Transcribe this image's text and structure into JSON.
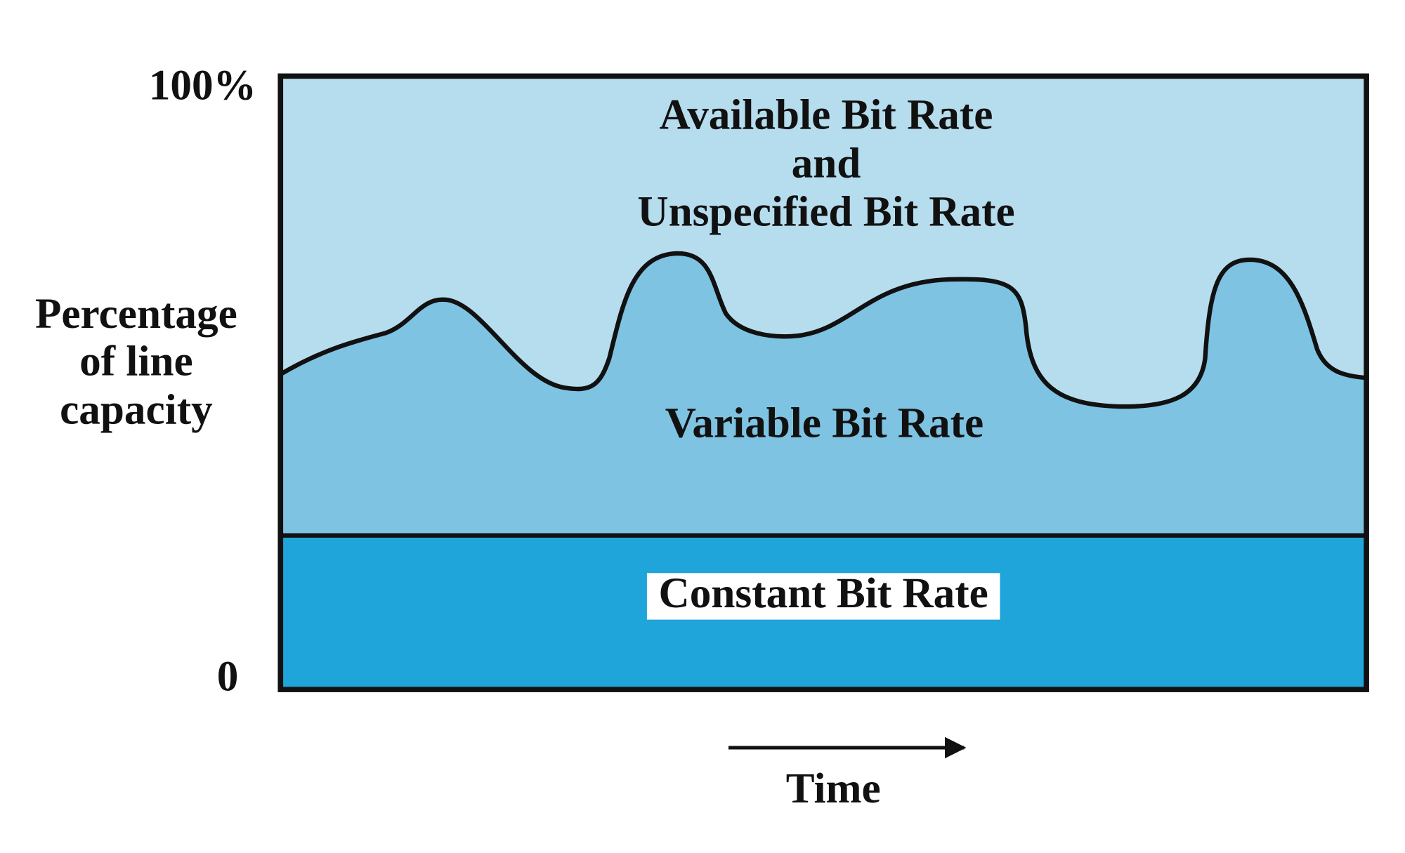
{
  "axis": {
    "y_top_label": "100%",
    "y_bottom_label": "0",
    "y_title_lines": [
      "Percentage",
      "of line",
      "capacity"
    ],
    "x_title": "Time"
  },
  "regions": {
    "top": {
      "label_lines": [
        "Available Bit Rate",
        "and",
        "Unspecified Bit Rate"
      ]
    },
    "middle": {
      "label": "Variable Bit Rate"
    },
    "bottom": {
      "label": "Constant Bit Rate"
    }
  }
}
